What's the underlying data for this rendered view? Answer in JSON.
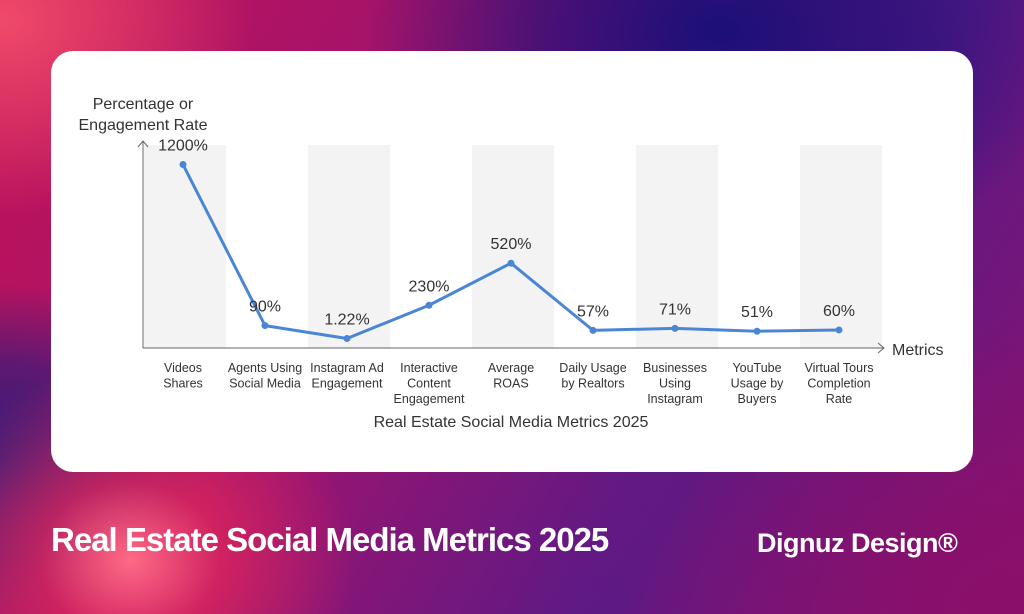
{
  "chart_data": {
    "type": "line",
    "title": "Real Estate Social Media Metrics 2025",
    "ylabel_lines": [
      "Percentage or",
      "Engagement Rate"
    ],
    "xlabel": "Metrics",
    "categories": [
      [
        "Videos",
        "Shares"
      ],
      [
        "Agents Using",
        "Social Media"
      ],
      [
        "Instagram Ad",
        "Engagement"
      ],
      [
        "Interactive",
        "Content",
        "Engagement"
      ],
      [
        "Average",
        "ROAS"
      ],
      [
        "Daily Usage",
        "by Realtors"
      ],
      [
        "Businesses",
        "Using",
        "Instagram"
      ],
      [
        "YouTube",
        "Usage by",
        "Buyers"
      ],
      [
        "Virtual Tours",
        "Completion",
        "Rate"
      ]
    ],
    "values": [
      1200,
      90,
      1.22,
      230,
      520,
      57,
      71,
      51,
      60
    ],
    "data_labels": [
      "1200%",
      "90%",
      "1.22%",
      "230%",
      "520%",
      "57%",
      "71%",
      "51%",
      "60%"
    ],
    "ylim": [
      -30,
      1300
    ],
    "series_color": "#4a86d4",
    "band_color": "#f3f3f3"
  },
  "footer": {
    "title": "Real Estate Social Media Metrics 2025",
    "brand": "Dignuz Design®"
  }
}
